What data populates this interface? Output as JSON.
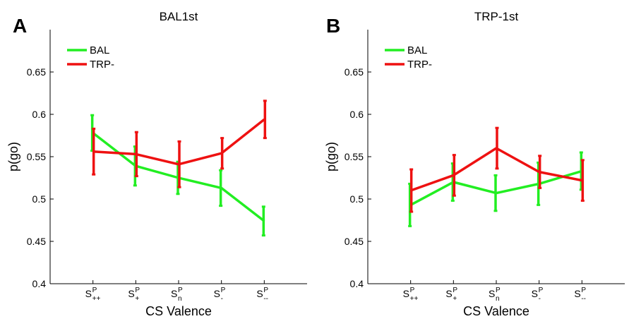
{
  "chart_data": [
    {
      "type": "line",
      "panel_letter": "A",
      "title": "BAL1st",
      "xlabel": "CS Valence",
      "ylabel": "p(go)",
      "ylim": [
        0.4,
        0.7
      ],
      "yticks": [
        "0.4",
        "0.45",
        "0.5",
        "0.55",
        "0.6",
        "0.65"
      ],
      "categories": [
        {
          "main": "S",
          "sup": "P",
          "sub": "++"
        },
        {
          "main": "S",
          "sup": "P",
          "sub": "+"
        },
        {
          "main": "S",
          "sup": "P",
          "sub": "n"
        },
        {
          "main": "S",
          "sup": "P",
          "sub": "-"
        },
        {
          "main": "S",
          "sup": "P",
          "sub": "--"
        }
      ],
      "legend": "top-left",
      "series": [
        {
          "name": "BAL",
          "color": "#22ee22",
          "values": [
            0.578,
            0.539,
            0.525,
            0.513,
            0.474
          ],
          "err": [
            0.021,
            0.023,
            0.019,
            0.021,
            0.017
          ]
        },
        {
          "name": "TRP-",
          "color": "#ee1111",
          "values": [
            0.556,
            0.553,
            0.541,
            0.554,
            0.594
          ],
          "err": [
            0.027,
            0.026,
            0.027,
            0.018,
            0.022
          ]
        }
      ]
    },
    {
      "type": "line",
      "panel_letter": "B",
      "title": "TRP-1st",
      "xlabel": "CS Valence",
      "ylabel": "p(go)",
      "ylim": [
        0.4,
        0.7
      ],
      "yticks": [
        "0.4",
        "0.45",
        "0.5",
        "0.55",
        "0.6",
        "0.65"
      ],
      "categories": [
        {
          "main": "S",
          "sup": "P",
          "sub": "++"
        },
        {
          "main": "S",
          "sup": "P",
          "sub": "+"
        },
        {
          "main": "S",
          "sup": "P",
          "sub": "n"
        },
        {
          "main": "S",
          "sup": "P",
          "sub": "-"
        },
        {
          "main": "S",
          "sup": "P",
          "sub": "--"
        }
      ],
      "legend": "top-left",
      "series": [
        {
          "name": "BAL",
          "color": "#22ee22",
          "values": [
            0.493,
            0.52,
            0.507,
            0.518,
            0.533
          ],
          "err": [
            0.025,
            0.022,
            0.021,
            0.025,
            0.022
          ]
        },
        {
          "name": "TRP-",
          "color": "#ee1111",
          "values": [
            0.51,
            0.528,
            0.56,
            0.532,
            0.522
          ],
          "err": [
            0.025,
            0.024,
            0.024,
            0.019,
            0.024
          ]
        }
      ]
    }
  ]
}
